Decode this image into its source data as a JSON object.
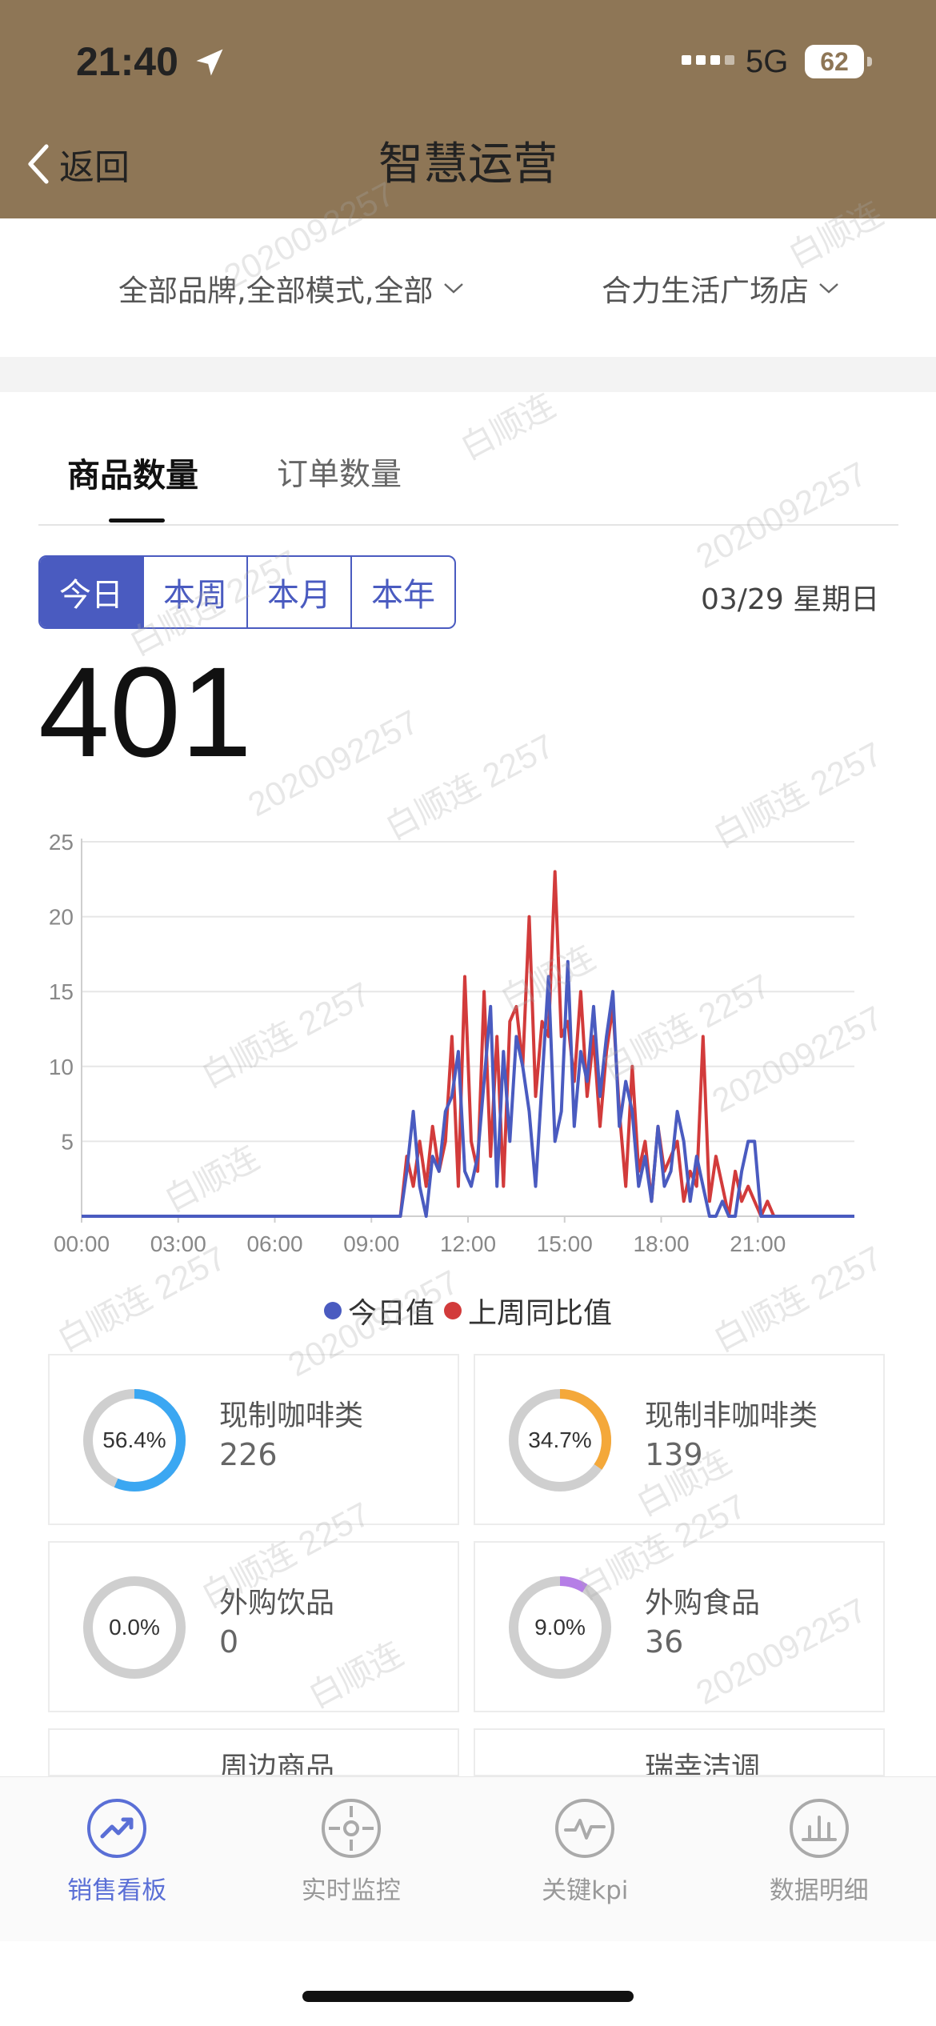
{
  "status_bar": {
    "time": "21:40",
    "network": "5G",
    "battery": "62",
    "icons": [
      "location-arrow-icon",
      "signal-icon",
      "battery-icon"
    ]
  },
  "header": {
    "back_label": "返回",
    "title": "智慧运营",
    "background_color": "#8e7656"
  },
  "filters": {
    "brand_mode": "全部品牌,全部模式,全部",
    "store": "合力生活广场店"
  },
  "tabs": [
    {
      "label": "商品数量",
      "active": true
    },
    {
      "label": "订单数量",
      "active": false
    }
  ],
  "period": {
    "options": [
      "今日",
      "本周",
      "本月",
      "本年"
    ],
    "selected": "今日",
    "date": "03/29 星期日"
  },
  "total": "401",
  "chart_data": {
    "type": "line",
    "title": "",
    "xlabel": "",
    "ylabel": "",
    "x_ticks": [
      "00:00",
      "03:00",
      "06:00",
      "09:00",
      "12:00",
      "15:00",
      "18:00",
      "21:00"
    ],
    "y_ticks": [
      5,
      10,
      15,
      20,
      25
    ],
    "xlim": [
      0,
      24
    ],
    "ylim": [
      0,
      25
    ],
    "grid": true,
    "legend_position": "bottom",
    "series": [
      {
        "name": "今日值",
        "color": "#4a5bc0",
        "x": [
          0,
          9.9,
          10.1,
          10.3,
          10.5,
          10.7,
          10.9,
          11.1,
          11.3,
          11.5,
          11.7,
          11.9,
          12.1,
          12.3,
          12.5,
          12.7,
          12.9,
          13.1,
          13.3,
          13.5,
          13.7,
          13.9,
          14.1,
          14.3,
          14.5,
          14.7,
          14.9,
          15.1,
          15.3,
          15.5,
          15.7,
          15.9,
          16.1,
          16.3,
          16.5,
          16.7,
          16.9,
          17.1,
          17.3,
          17.5,
          17.7,
          17.9,
          18.1,
          18.3,
          18.5,
          18.7,
          18.9,
          19.1,
          19.3,
          19.5,
          19.7,
          19.9,
          20.1,
          20.3,
          20.5,
          20.7,
          20.9,
          21.1,
          21.3,
          21.5,
          21.7,
          24
        ],
        "values": [
          0,
          0,
          3,
          7,
          2,
          0,
          4,
          3,
          7,
          8,
          11,
          3,
          2,
          4,
          9,
          14,
          2,
          11,
          5,
          12,
          10,
          7,
          2,
          9,
          16,
          5,
          7,
          17,
          6,
          11,
          9,
          14,
          8,
          12,
          15,
          6,
          9,
          7,
          2,
          4,
          1,
          6,
          2,
          3,
          7,
          5,
          1,
          4,
          2,
          0,
          0,
          1,
          0,
          0,
          3,
          5,
          5,
          0,
          0,
          0,
          0,
          0
        ]
      },
      {
        "name": "上周同比值",
        "color": "#d23b3b",
        "x": [
          0,
          9.9,
          10.1,
          10.3,
          10.5,
          10.7,
          10.9,
          11.1,
          11.3,
          11.5,
          11.7,
          11.9,
          12.1,
          12.3,
          12.5,
          12.7,
          12.9,
          13.1,
          13.3,
          13.5,
          13.7,
          13.9,
          14.1,
          14.3,
          14.5,
          14.7,
          14.9,
          15.1,
          15.3,
          15.5,
          15.7,
          15.9,
          16.1,
          16.3,
          16.5,
          16.7,
          16.9,
          17.1,
          17.3,
          17.5,
          17.7,
          17.9,
          18.1,
          18.3,
          18.5,
          18.7,
          18.9,
          19.1,
          19.3,
          19.5,
          19.7,
          19.9,
          20.1,
          20.3,
          20.5,
          20.7,
          20.9,
          21.1,
          21.3,
          21.5,
          21.7,
          24
        ],
        "values": [
          0,
          0,
          4,
          2,
          5,
          2,
          6,
          3,
          5,
          12,
          2,
          16,
          5,
          3,
          15,
          4,
          12,
          2,
          13,
          14,
          10,
          20,
          8,
          13,
          12,
          23,
          12,
          13,
          9,
          15,
          8,
          12,
          6,
          11,
          14,
          7,
          2,
          10,
          3,
          5,
          1,
          6,
          3,
          4,
          5,
          1,
          3,
          2,
          12,
          1,
          4,
          2,
          0,
          3,
          1,
          2,
          1,
          0,
          1,
          0,
          0,
          0
        ]
      }
    ]
  },
  "categories": [
    {
      "name": "现制咖啡类",
      "value": "226",
      "percent_label": "56.4%",
      "percent": 56.4,
      "color": "#3ba7f2"
    },
    {
      "name": "现制非咖啡类",
      "value": "139",
      "percent_label": "34.7%",
      "percent": 34.7,
      "color": "#f4a83a"
    },
    {
      "name": "外购饮品",
      "value": "0",
      "percent_label": "0.0%",
      "percent": 0.0,
      "color": "#9b6fe0"
    },
    {
      "name": "外购食品",
      "value": "36",
      "percent_label": "9.0%",
      "percent": 9.0,
      "color": "#b57ee6"
    }
  ],
  "partial_categories": [
    {
      "name": "周边商品"
    },
    {
      "name": "瑞幸洁调"
    }
  ],
  "watermark": {
    "name": "白顺连",
    "id": "2020092257",
    "name_id": "白顺连 2257"
  },
  "bottom_nav": [
    {
      "label": "销售看板",
      "icon": "trending-chart-icon",
      "active": true
    },
    {
      "label": "实时监控",
      "icon": "target-icon",
      "active": false
    },
    {
      "label": "关键kpi",
      "icon": "pulse-icon",
      "active": false
    },
    {
      "label": "数据明细",
      "icon": "bar-chart-icon",
      "active": false
    }
  ]
}
